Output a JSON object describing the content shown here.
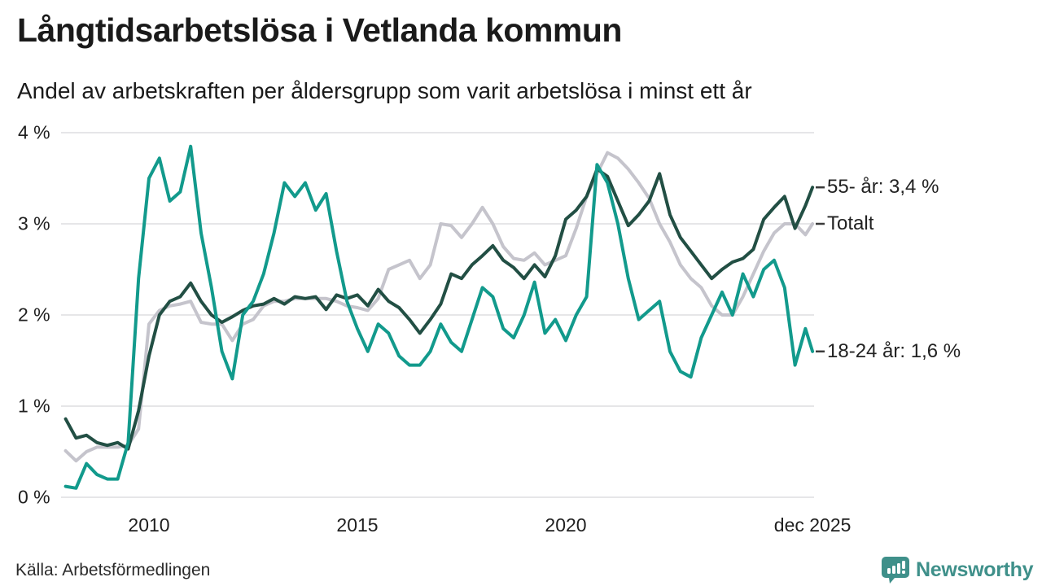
{
  "header": {
    "title": "Långtidsarbetslösa i Vetlanda kommun",
    "subtitle": "Andel av arbetskraften per åldersgrupp som varit arbetslösa i minst ett år"
  },
  "footer": {
    "source": "Källa: Arbetsförmedlingen",
    "logo_text": "Newsworthy",
    "logo_color": "#3f908a"
  },
  "colors": {
    "grid": "#e6e6e8",
    "axis_text": "#1f1f1f",
    "label_dash": "#3a3a3a",
    "background": "#ffffff"
  },
  "chart_data": {
    "type": "line",
    "title": "Långtidsarbetslösa i Vetlanda kommun",
    "subtitle": "Andel av arbetskraften per åldersgrupp som varit arbetslösa i minst ett år",
    "x_unit": "decimal-year, quarterly samples 2008–dec 2025",
    "ylim": [
      0,
      4
    ],
    "grid": "horizontal-only",
    "legend_position": "right-end-labels",
    "yticks": [
      {
        "label": "0 %",
        "value": 0
      },
      {
        "label": "1 %",
        "value": 1
      },
      {
        "label": "2 %",
        "value": 2
      },
      {
        "label": "3 %",
        "value": 3
      },
      {
        "label": "4 %",
        "value": 4
      }
    ],
    "xticks": [
      {
        "label": "2010",
        "year": 2010
      },
      {
        "label": "2015",
        "year": 2015
      },
      {
        "label": "2020",
        "year": 2020
      },
      {
        "label": "dec 2025",
        "year": 2025.92
      }
    ],
    "x": [
      2008.0,
      2008.25,
      2008.5,
      2008.75,
      2009.0,
      2009.25,
      2009.5,
      2009.75,
      2010.0,
      2010.25,
      2010.5,
      2010.75,
      2011.0,
      2011.25,
      2011.5,
      2011.75,
      2012.0,
      2012.25,
      2012.5,
      2012.75,
      2013.0,
      2013.25,
      2013.5,
      2013.75,
      2014.0,
      2014.25,
      2014.5,
      2014.75,
      2015.0,
      2015.25,
      2015.5,
      2015.75,
      2016.0,
      2016.25,
      2016.5,
      2016.75,
      2017.0,
      2017.25,
      2017.5,
      2017.75,
      2018.0,
      2018.25,
      2018.5,
      2018.75,
      2019.0,
      2019.25,
      2019.5,
      2019.75,
      2020.0,
      2020.25,
      2020.5,
      2020.75,
      2021.0,
      2021.25,
      2021.5,
      2021.75,
      2022.0,
      2022.25,
      2022.5,
      2022.75,
      2023.0,
      2023.25,
      2023.5,
      2023.75,
      2024.0,
      2024.25,
      2024.5,
      2024.75,
      2025.0,
      2025.25,
      2025.5,
      2025.75,
      2025.92
    ],
    "series": [
      {
        "name": "55- år",
        "end_label": "55- år: 3,4 %",
        "end_value_text": "3,4 %",
        "color": "#224f44",
        "values": [
          0.86,
          0.65,
          0.68,
          0.6,
          0.57,
          0.6,
          0.53,
          0.95,
          1.55,
          2.0,
          2.15,
          2.2,
          2.35,
          2.15,
          2.0,
          1.92,
          1.98,
          2.05,
          2.1,
          2.12,
          2.18,
          2.12,
          2.2,
          2.18,
          2.2,
          2.06,
          2.22,
          2.18,
          2.22,
          2.1,
          2.28,
          2.15,
          2.08,
          1.95,
          1.8,
          1.95,
          2.12,
          2.45,
          2.4,
          2.55,
          2.65,
          2.76,
          2.6,
          2.52,
          2.4,
          2.55,
          2.42,
          2.65,
          3.05,
          3.15,
          3.3,
          3.6,
          3.52,
          3.25,
          2.98,
          3.1,
          3.25,
          3.55,
          3.1,
          2.85,
          2.7,
          2.55,
          2.4,
          2.5,
          2.58,
          2.62,
          2.72,
          3.05,
          3.18,
          3.3,
          2.95,
          3.2,
          3.4
        ]
      },
      {
        "name": "Totalt",
        "end_label": "Totalt",
        "end_value_text": "",
        "color": "#c5c4cc",
        "values": [
          0.51,
          0.4,
          0.5,
          0.55,
          0.55,
          0.55,
          0.57,
          0.75,
          1.9,
          2.05,
          2.1,
          2.12,
          2.15,
          1.92,
          1.9,
          1.9,
          1.72,
          1.9,
          1.95,
          2.1,
          2.15,
          2.15,
          2.18,
          2.18,
          2.18,
          2.18,
          2.15,
          2.1,
          2.08,
          2.05,
          2.18,
          2.5,
          2.55,
          2.6,
          2.4,
          2.55,
          3.0,
          2.98,
          2.85,
          3.0,
          3.18,
          3.0,
          2.75,
          2.62,
          2.6,
          2.68,
          2.55,
          2.6,
          2.65,
          2.95,
          3.3,
          3.55,
          3.78,
          3.72,
          3.6,
          3.45,
          3.28,
          3.0,
          2.8,
          2.55,
          2.4,
          2.3,
          2.1,
          2.0,
          2.0,
          2.2,
          2.45,
          2.7,
          2.9,
          3.0,
          3.0,
          2.88,
          3.0
        ]
      },
      {
        "name": "18-24 år",
        "end_label": "18-24 år: 1,6 %",
        "end_value_text": "1,6 %",
        "color": "#129a8c",
        "values": [
          0.12,
          0.1,
          0.37,
          0.25,
          0.2,
          0.2,
          0.6,
          2.4,
          3.5,
          3.72,
          3.25,
          3.35,
          3.85,
          2.9,
          2.3,
          1.6,
          1.3,
          2.0,
          2.15,
          2.45,
          2.9,
          3.45,
          3.3,
          3.45,
          3.15,
          3.33,
          2.7,
          2.15,
          1.85,
          1.6,
          1.9,
          1.8,
          1.55,
          1.45,
          1.45,
          1.6,
          1.9,
          1.7,
          1.6,
          1.95,
          2.3,
          2.2,
          1.85,
          1.75,
          2.0,
          2.36,
          1.8,
          1.95,
          1.72,
          2.0,
          2.2,
          3.65,
          3.45,
          3.0,
          2.4,
          1.95,
          2.05,
          2.15,
          1.6,
          1.38,
          1.32,
          1.75,
          2.0,
          2.25,
          2.0,
          2.45,
          2.2,
          2.5,
          2.6,
          2.3,
          1.45,
          1.85,
          1.6
        ]
      }
    ]
  }
}
